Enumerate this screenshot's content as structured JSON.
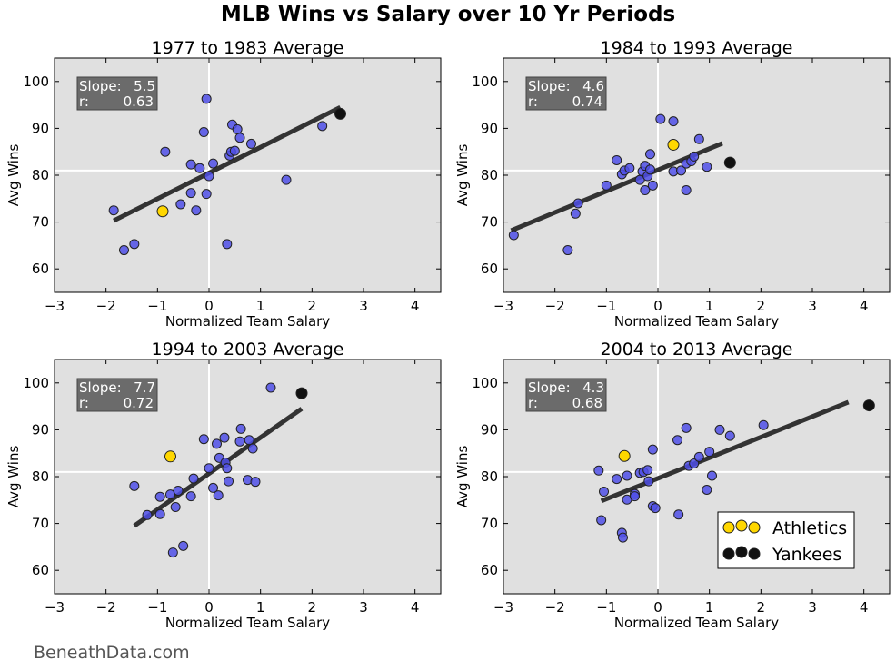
{
  "figure": {
    "title": "MLB Wins vs Salary over 10 Yr Periods",
    "credit": "BeneathData.com",
    "colors": {
      "panel_bg": "#e0e0e0",
      "team_points": "#4f4fe6",
      "athletics": "#ffd700",
      "yankees": "#111111",
      "fit_line": "#333333",
      "stats_box": "#6b6b6b",
      "mean_lines": "#ffffff"
    }
  },
  "legend": {
    "placement": "lower-right of panel 4",
    "entries": [
      {
        "label": "Athletics",
        "color": "#ffd700"
      },
      {
        "label": "Yankees",
        "color": "#111111"
      }
    ]
  },
  "chart_data": [
    {
      "type": "scatter",
      "title": "1977 to 1983 Average",
      "xlabel": "Normalized Team Salary",
      "ylabel": "Avg Wins",
      "xlim": [
        -3,
        4.5
      ],
      "ylim": [
        55,
        105
      ],
      "xticks": [
        -3,
        -2,
        -1,
        0,
        1,
        2,
        3,
        4
      ],
      "yticks": [
        60,
        70,
        80,
        90,
        100
      ],
      "mean_lines": {
        "x": 0,
        "y": 81
      },
      "stats": {
        "slope_label": "Slope:",
        "slope": "5.5",
        "r_label": "r:",
        "r": "0.63"
      },
      "fit_line": {
        "x": [
          -1.85,
          2.55
        ],
        "y": [
          70.3,
          94.5
        ]
      },
      "series": [
        {
          "points": [
            [
              -1.85,
              72.5
            ],
            [
              -1.65,
              64
            ],
            [
              -1.45,
              65.3
            ],
            [
              -0.85,
              85
            ],
            [
              -0.55,
              73.8
            ],
            [
              -0.35,
              82.3
            ],
            [
              -0.35,
              76.2
            ],
            [
              -0.25,
              72.5
            ],
            [
              -0.18,
              81.5
            ],
            [
              -0.1,
              89.2
            ],
            [
              -0.05,
              96.3
            ],
            [
              -0.05,
              76
            ],
            [
              0,
              79.8
            ],
            [
              0.08,
              82.5
            ],
            [
              0.35,
              65.3
            ],
            [
              0.4,
              84.2
            ],
            [
              0.43,
              85
            ],
            [
              0.45,
              90.8
            ],
            [
              0.5,
              85.2
            ],
            [
              0.55,
              89.8
            ],
            [
              0.6,
              88
            ],
            [
              0.82,
              86.7
            ],
            [
              1.5,
              79
            ],
            [
              2.2,
              90.5
            ]
          ]
        },
        {
          "name": "Athletics",
          "points": [
            [
              -0.9,
              72.3
            ]
          ]
        },
        {
          "name": "Yankees",
          "points": [
            [
              2.55,
              93.1
            ]
          ]
        }
      ]
    },
    {
      "type": "scatter",
      "title": "1984 to 1993 Average",
      "xlabel": "Normalized Team Salary",
      "ylabel": "Avg Wins",
      "xlim": [
        -3,
        4.5
      ],
      "ylim": [
        55,
        105
      ],
      "xticks": [
        -3,
        -2,
        -1,
        0,
        1,
        2,
        3,
        4
      ],
      "yticks": [
        60,
        70,
        80,
        90,
        100
      ],
      "mean_lines": {
        "x": 0,
        "y": 81
      },
      "stats": {
        "slope_label": "Slope:",
        "slope": "4.6",
        "r_label": "r:",
        "r": "0.74"
      },
      "fit_line": {
        "x": [
          -2.85,
          1.25
        ],
        "y": [
          68.2,
          86.8
        ]
      },
      "series": [
        {
          "points": [
            [
              -2.8,
              67.2
            ],
            [
              -1.75,
              64
            ],
            [
              -1.6,
              71.8
            ],
            [
              -1.55,
              74
            ],
            [
              -1.0,
              77.8
            ],
            [
              -0.8,
              83.2
            ],
            [
              -0.7,
              80.2
            ],
            [
              -0.65,
              81
            ],
            [
              -0.55,
              81.5
            ],
            [
              -0.35,
              79
            ],
            [
              -0.3,
              80.8
            ],
            [
              -0.25,
              82
            ],
            [
              -0.25,
              76.8
            ],
            [
              -0.2,
              79.8
            ],
            [
              -0.15,
              84.5
            ],
            [
              -0.15,
              81.2
            ],
            [
              -0.1,
              77.8
            ],
            [
              0.05,
              92
            ],
            [
              0.3,
              91.5
            ],
            [
              0.3,
              80.8
            ],
            [
              0.45,
              81
            ],
            [
              0.55,
              76.8
            ],
            [
              0.55,
              82.5
            ],
            [
              0.65,
              83
            ],
            [
              0.7,
              84
            ],
            [
              0.8,
              87.7
            ],
            [
              0.95,
              81.8
            ]
          ]
        },
        {
          "name": "Athletics",
          "points": [
            [
              0.3,
              86.5
            ]
          ]
        },
        {
          "name": "Yankees",
          "points": [
            [
              1.4,
              82.7
            ]
          ]
        }
      ]
    },
    {
      "type": "scatter",
      "title": "1994 to 2003 Average",
      "xlabel": "Normalized Team Salary",
      "ylabel": "Avg Wins",
      "xlim": [
        -3,
        4.5
      ],
      "ylim": [
        55,
        105
      ],
      "xticks": [
        -3,
        -2,
        -1,
        0,
        1,
        2,
        3,
        4
      ],
      "yticks": [
        60,
        70,
        80,
        90,
        100
      ],
      "mean_lines": {
        "x": 0,
        "y": 81
      },
      "stats": {
        "slope_label": "Slope:",
        "slope": "7.7",
        "r_label": "r:",
        "r": "0.72"
      },
      "fit_line": {
        "x": [
          -1.45,
          1.8
        ],
        "y": [
          69.5,
          94.5
        ]
      },
      "series": [
        {
          "points": [
            [
              -1.45,
              78
            ],
            [
              -1.2,
              71.8
            ],
            [
              -0.95,
              75.7
            ],
            [
              -0.95,
              72
            ],
            [
              -0.75,
              76.2
            ],
            [
              -0.7,
              63.8
            ],
            [
              -0.65,
              73.5
            ],
            [
              -0.6,
              77
            ],
            [
              -0.5,
              65.2
            ],
            [
              -0.35,
              75.8
            ],
            [
              -0.3,
              79.6
            ],
            [
              -0.1,
              88
            ],
            [
              0,
              81.8
            ],
            [
              0.08,
              77.6
            ],
            [
              0.15,
              87
            ],
            [
              0.18,
              76
            ],
            [
              0.2,
              84
            ],
            [
              0.3,
              88.3
            ],
            [
              0.32,
              83
            ],
            [
              0.35,
              81.8
            ],
            [
              0.38,
              79
            ],
            [
              0.6,
              87.5
            ],
            [
              0.62,
              90.2
            ],
            [
              0.75,
              79.3
            ],
            [
              0.78,
              87.8
            ],
            [
              0.85,
              86
            ],
            [
              0.9,
              78.9
            ],
            [
              1.2,
              99
            ]
          ]
        },
        {
          "name": "Athletics",
          "points": [
            [
              -0.75,
              84.3
            ]
          ]
        },
        {
          "name": "Yankees",
          "points": [
            [
              1.8,
              97.8
            ]
          ]
        }
      ]
    },
    {
      "type": "scatter",
      "title": "2004 to 2013 Average",
      "xlabel": "Normalized Team Salary",
      "ylabel": "Avg Wins",
      "xlim": [
        -3,
        4.5
      ],
      "ylim": [
        55,
        105
      ],
      "xticks": [
        -3,
        -2,
        -1,
        0,
        1,
        2,
        3,
        4
      ],
      "yticks": [
        60,
        70,
        80,
        90,
        100
      ],
      "mean_lines": {
        "x": 0,
        "y": 81
      },
      "stats": {
        "slope_label": "Slope:",
        "slope": "4.3",
        "r_label": "r:",
        "r": "0.68"
      },
      "fit_line": {
        "x": [
          -1.1,
          3.7
        ],
        "y": [
          74.8,
          95.9
        ]
      },
      "series": [
        {
          "points": [
            [
              -1.15,
              81.3
            ],
            [
              -1.1,
              70.7
            ],
            [
              -1.05,
              76.8
            ],
            [
              -0.8,
              79.5
            ],
            [
              -0.7,
              68
            ],
            [
              -0.68,
              67
            ],
            [
              -0.6,
              80.2
            ],
            [
              -0.6,
              75.1
            ],
            [
              -0.45,
              76.3
            ],
            [
              -0.45,
              75.8
            ],
            [
              -0.35,
              80.8
            ],
            [
              -0.28,
              81
            ],
            [
              -0.2,
              81.4
            ],
            [
              -0.18,
              79
            ],
            [
              -0.1,
              85.8
            ],
            [
              -0.1,
              73.7
            ],
            [
              -0.05,
              73.3
            ],
            [
              0.38,
              87.8
            ],
            [
              0.4,
              71.9
            ],
            [
              0.55,
              90.4
            ],
            [
              0.6,
              82.3
            ],
            [
              0.7,
              82.8
            ],
            [
              0.8,
              84.2
            ],
            [
              0.95,
              77.2
            ],
            [
              1.0,
              85.3
            ],
            [
              1.05,
              80.2
            ],
            [
              1.2,
              90
            ],
            [
              1.4,
              88.7
            ],
            [
              2.05,
              91
            ]
          ]
        },
        {
          "name": "Athletics",
          "points": [
            [
              -0.65,
              84.4
            ]
          ]
        },
        {
          "name": "Yankees",
          "points": [
            [
              4.1,
              95.2
            ]
          ]
        }
      ]
    }
  ]
}
